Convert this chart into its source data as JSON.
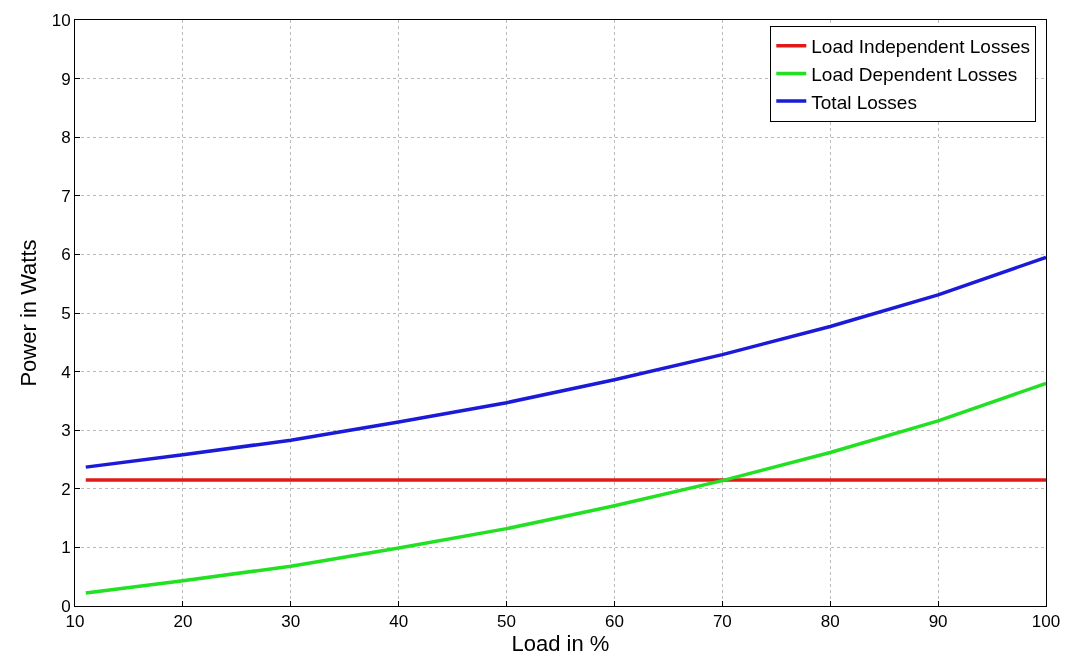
{
  "chart_data": {
    "type": "line",
    "xlabel": "Load in %",
    "ylabel": "Power in Watts",
    "x": [
      11,
      20,
      30,
      40,
      50,
      60,
      70,
      80,
      90,
      100
    ],
    "series": [
      {
        "name": "Load Independent Losses",
        "color": "#e01a1a",
        "values": [
          2.15,
          2.15,
          2.15,
          2.15,
          2.15,
          2.15,
          2.15,
          2.15,
          2.15,
          2.15
        ]
      },
      {
        "name": "Load Dependent Losses",
        "color": "#22e022",
        "values": [
          0.22,
          0.43,
          0.68,
          0.99,
          1.32,
          1.71,
          2.14,
          2.62,
          3.16,
          3.8
        ]
      },
      {
        "name": "Total Losses",
        "color": "#1a1ad8",
        "values": [
          2.37,
          2.58,
          2.83,
          3.14,
          3.47,
          3.86,
          4.29,
          4.77,
          5.31,
          5.95
        ]
      }
    ],
    "xlim": [
      10,
      100
    ],
    "xticks": [
      10,
      20,
      30,
      40,
      50,
      60,
      70,
      80,
      90,
      100
    ],
    "ylim": [
      0,
      10
    ],
    "yticks": [
      0,
      1,
      2,
      3,
      4,
      5,
      6,
      7,
      8,
      9,
      10
    ],
    "grid": true,
    "legend": "top right",
    "line_style": "solid",
    "marker": "none"
  }
}
